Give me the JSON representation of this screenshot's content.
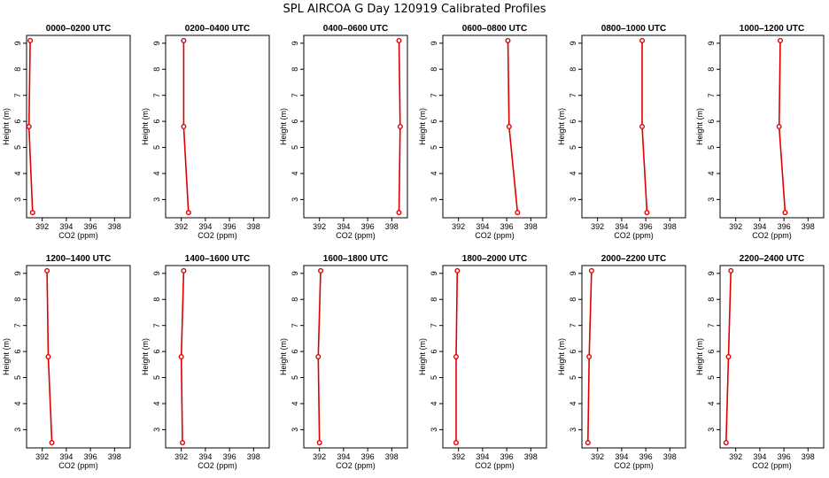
{
  "figure": {
    "title": "SPL AIRCOA G  Day 120919  Calibrated Profiles"
  },
  "colors": {
    "series": "#dd0000",
    "axis": "#000000"
  },
  "chart_data": [
    {
      "type": "line",
      "title": "0000–0200 UTC",
      "xlabel": "CO2 (ppm)",
      "ylabel": "Height (m)",
      "xlim": [
        390.7,
        399.3
      ],
      "ylim": [
        2.3,
        9.3
      ],
      "xticks": [
        392,
        394,
        396,
        398
      ],
      "yticks": [
        3,
        4,
        5,
        6,
        7,
        8,
        9
      ],
      "grid": false,
      "x": [
        391.0,
        390.9,
        391.2
      ],
      "y": [
        9.1,
        5.8,
        2.5
      ]
    },
    {
      "type": "line",
      "title": "0200–0400 UTC",
      "xlabel": "CO2 (ppm)",
      "ylabel": "Height (m)",
      "xlim": [
        390.7,
        399.3
      ],
      "ylim": [
        2.3,
        9.3
      ],
      "xticks": [
        392,
        394,
        396,
        398
      ],
      "yticks": [
        3,
        4,
        5,
        6,
        7,
        8,
        9
      ],
      "grid": false,
      "x": [
        392.2,
        392.2,
        392.6
      ],
      "y": [
        9.1,
        5.8,
        2.5
      ]
    },
    {
      "type": "line",
      "title": "0400–0600 UTC",
      "xlabel": "CO2 (ppm)",
      "ylabel": "Height (m)",
      "xlim": [
        390.7,
        399.3
      ],
      "ylim": [
        2.3,
        9.3
      ],
      "xticks": [
        392,
        394,
        396,
        398
      ],
      "yticks": [
        3,
        4,
        5,
        6,
        7,
        8,
        9
      ],
      "grid": false,
      "x": [
        398.6,
        398.7,
        398.6
      ],
      "y": [
        9.1,
        5.8,
        2.5
      ]
    },
    {
      "type": "line",
      "title": "0600–0800 UTC",
      "xlabel": "CO2 (ppm)",
      "ylabel": "Height (m)",
      "xlim": [
        390.7,
        399.3
      ],
      "ylim": [
        2.3,
        9.3
      ],
      "xticks": [
        392,
        394,
        396,
        398
      ],
      "yticks": [
        3,
        4,
        5,
        6,
        7,
        8,
        9
      ],
      "grid": false,
      "x": [
        396.1,
        396.2,
        396.9
      ],
      "y": [
        9.1,
        5.8,
        2.5
      ]
    },
    {
      "type": "line",
      "title": "0800–1000 UTC",
      "xlabel": "CO2 (ppm)",
      "ylabel": "Height (m)",
      "xlim": [
        390.7,
        399.3
      ],
      "ylim": [
        2.3,
        9.3
      ],
      "xticks": [
        392,
        394,
        396,
        398
      ],
      "yticks": [
        3,
        4,
        5,
        6,
        7,
        8,
        9
      ],
      "grid": false,
      "x": [
        395.7,
        395.7,
        396.1
      ],
      "y": [
        9.1,
        5.8,
        2.5
      ]
    },
    {
      "type": "line",
      "title": "1000–1200 UTC",
      "xlabel": "CO2 (ppm)",
      "ylabel": "Height (m)",
      "xlim": [
        390.7,
        399.3
      ],
      "ylim": [
        2.3,
        9.3
      ],
      "xticks": [
        392,
        394,
        396,
        398
      ],
      "yticks": [
        3,
        4,
        5,
        6,
        7,
        8,
        9
      ],
      "grid": false,
      "x": [
        395.7,
        395.6,
        396.1
      ],
      "y": [
        9.1,
        5.8,
        2.5
      ]
    },
    {
      "type": "line",
      "title": "1200–1400 UTC",
      "xlabel": "CO2 (ppm)",
      "ylabel": "Height (m)",
      "xlim": [
        390.7,
        399.3
      ],
      "ylim": [
        2.3,
        9.3
      ],
      "xticks": [
        392,
        394,
        396,
        398
      ],
      "yticks": [
        3,
        4,
        5,
        6,
        7,
        8,
        9
      ],
      "grid": false,
      "x": [
        392.4,
        392.5,
        392.8
      ],
      "y": [
        9.1,
        5.8,
        2.5
      ]
    },
    {
      "type": "line",
      "title": "1400–1600 UTC",
      "xlabel": "CO2 (ppm)",
      "ylabel": "Height (m)",
      "xlim": [
        390.7,
        399.3
      ],
      "ylim": [
        2.3,
        9.3
      ],
      "xticks": [
        392,
        394,
        396,
        398
      ],
      "yticks": [
        3,
        4,
        5,
        6,
        7,
        8,
        9
      ],
      "grid": false,
      "x": [
        392.2,
        392.0,
        392.1
      ],
      "y": [
        9.1,
        5.8,
        2.5
      ]
    },
    {
      "type": "line",
      "title": "1600–1800 UTC",
      "xlabel": "CO2 (ppm)",
      "ylabel": "Height (m)",
      "xlim": [
        390.7,
        399.3
      ],
      "ylim": [
        2.3,
        9.3
      ],
      "xticks": [
        392,
        394,
        396,
        398
      ],
      "yticks": [
        3,
        4,
        5,
        6,
        7,
        8,
        9
      ],
      "grid": false,
      "x": [
        392.1,
        391.9,
        392.0
      ],
      "y": [
        9.1,
        5.8,
        2.5
      ]
    },
    {
      "type": "line",
      "title": "1800–2000 UTC",
      "xlabel": "CO2 (ppm)",
      "ylabel": "Height (m)",
      "xlim": [
        390.7,
        399.3
      ],
      "ylim": [
        2.3,
        9.3
      ],
      "xticks": [
        392,
        394,
        396,
        398
      ],
      "yticks": [
        3,
        4,
        5,
        6,
        7,
        8,
        9
      ],
      "grid": false,
      "x": [
        391.9,
        391.8,
        391.8
      ],
      "y": [
        9.1,
        5.8,
        2.5
      ]
    },
    {
      "type": "line",
      "title": "2000–2200 UTC",
      "xlabel": "CO2 (ppm)",
      "ylabel": "Height (m)",
      "xlim": [
        390.7,
        399.3
      ],
      "ylim": [
        2.3,
        9.3
      ],
      "xticks": [
        392,
        394,
        396,
        398
      ],
      "yticks": [
        3,
        4,
        5,
        6,
        7,
        8,
        9
      ],
      "grid": false,
      "x": [
        391.5,
        391.3,
        391.2
      ],
      "y": [
        9.1,
        5.8,
        2.5
      ]
    },
    {
      "type": "line",
      "title": "2200–2400 UTC",
      "xlabel": "CO2 (ppm)",
      "ylabel": "Height (m)",
      "xlim": [
        390.7,
        399.3
      ],
      "ylim": [
        2.3,
        9.3
      ],
      "xticks": [
        392,
        394,
        396,
        398
      ],
      "yticks": [
        3,
        4,
        5,
        6,
        7,
        8,
        9
      ],
      "grid": false,
      "x": [
        391.6,
        391.4,
        391.2
      ],
      "y": [
        9.1,
        5.8,
        2.5
      ]
    }
  ]
}
